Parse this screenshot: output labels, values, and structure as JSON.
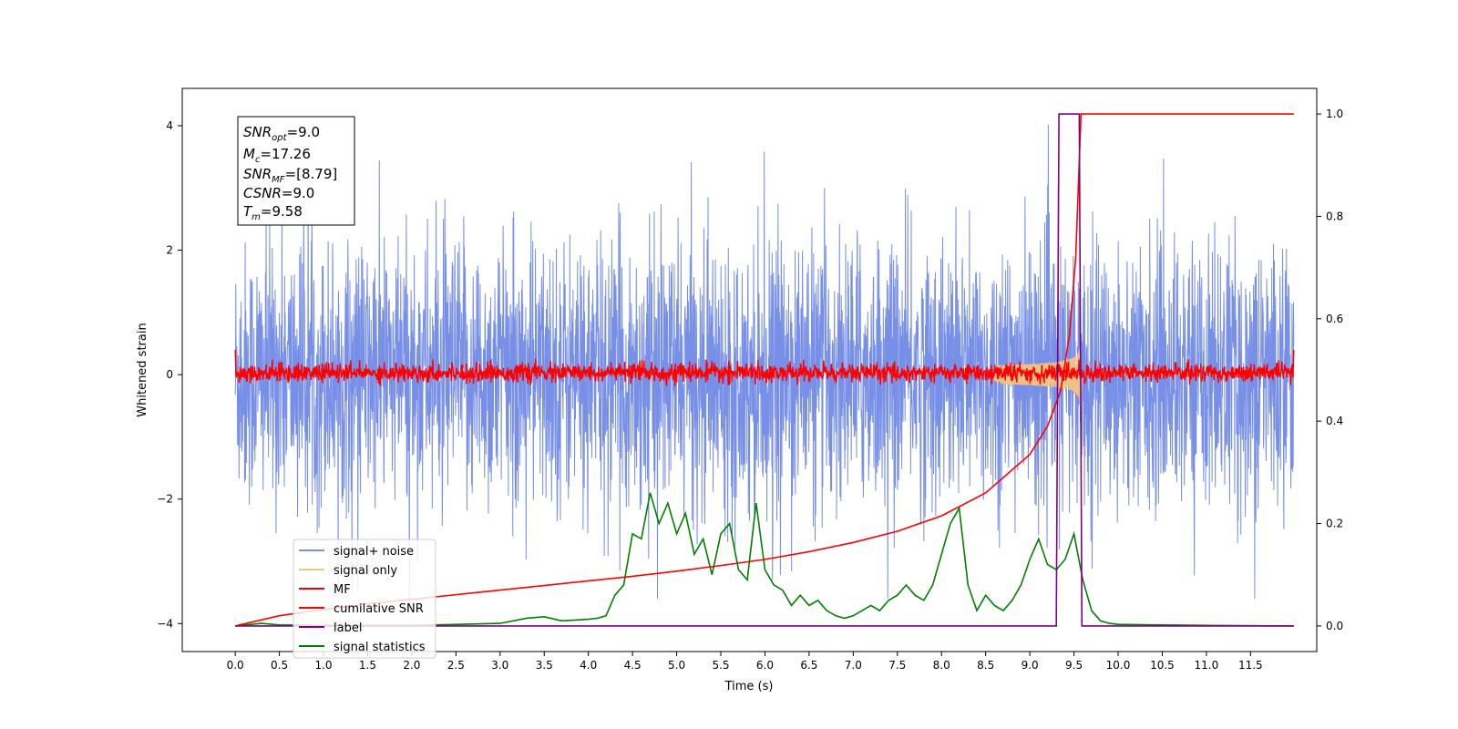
{
  "chart_data": {
    "type": "line",
    "xlabel": "Time (s)",
    "ylabel": "Whitened strain",
    "xlim": [
      -0.6,
      12.25
    ],
    "ylim": [
      -4.45,
      4.6
    ],
    "ylim_right": [
      -0.05,
      1.05
    ],
    "x_ticks": [
      "0.0",
      "0.5",
      "1.0",
      "1.5",
      "2.0",
      "2.5",
      "3.0",
      "3.5",
      "4.0",
      "4.5",
      "5.0",
      "5.5",
      "6.0",
      "6.5",
      "7.0",
      "7.5",
      "8.0",
      "8.5",
      "9.0",
      "9.5",
      "10.0",
      "10.5",
      "11.0",
      "11.5"
    ],
    "y_ticks_left": [
      "−4",
      "−2",
      "0",
      "2",
      "4"
    ],
    "y_ticks_right": [
      "0.0",
      "0.2",
      "0.4",
      "0.6",
      "0.8",
      "1.0"
    ],
    "annotation": {
      "snr_opt": "=9.0",
      "mc": "=17.26",
      "snr_mf": "=[8.79]",
      "csnr": "=9.0",
      "tm": "=9.58"
    },
    "series": [
      {
        "name": "signal+ noise",
        "color": "#778fe6",
        "axis": "left",
        "description_range": [
          -3.6,
          4.15
        ],
        "t_start": 0.0,
        "t_end": 11.99
      },
      {
        "name": "signal only",
        "color": "#f5c77e",
        "axis": "left",
        "chirp_peak_time": 9.58,
        "chirp_peak_amplitude": 1.0
      },
      {
        "name": "MF",
        "color": "#ff0000",
        "axis": "left",
        "band": [
          -0.15,
          0.2
        ]
      },
      {
        "name": "cumilative SNR",
        "color": "#ff0000",
        "axis": "right",
        "x": [
          0.0,
          0.5,
          1.0,
          1.5,
          2.0,
          2.5,
          3.0,
          3.5,
          4.0,
          4.5,
          5.0,
          5.5,
          6.0,
          6.5,
          7.0,
          7.5,
          8.0,
          8.5,
          9.0,
          9.2,
          9.35,
          9.45,
          9.52,
          9.58,
          10.0,
          11.0,
          11.99
        ],
        "values": [
          0.0,
          0.02,
          0.032,
          0.043,
          0.052,
          0.061,
          0.07,
          0.079,
          0.088,
          0.097,
          0.107,
          0.118,
          0.13,
          0.145,
          0.163,
          0.185,
          0.215,
          0.26,
          0.335,
          0.39,
          0.46,
          0.57,
          0.72,
          1.0,
          1.0,
          1.0,
          1.0
        ]
      },
      {
        "name": "label",
        "color": "#800080",
        "axis": "right",
        "x": [
          0.0,
          9.3,
          9.33,
          9.56,
          9.59,
          11.99
        ],
        "values": [
          0,
          0,
          1,
          1,
          0,
          0
        ]
      },
      {
        "name": "signal statistics",
        "color": "#008000",
        "axis": "right",
        "x": [
          0.0,
          0.3,
          0.5,
          1.0,
          2.0,
          3.0,
          3.3,
          3.5,
          3.7,
          4.0,
          4.1,
          4.2,
          4.3,
          4.4,
          4.5,
          4.6,
          4.7,
          4.8,
          4.9,
          5.0,
          5.1,
          5.2,
          5.3,
          5.4,
          5.5,
          5.6,
          5.7,
          5.8,
          5.9,
          6.0,
          6.1,
          6.2,
          6.3,
          6.4,
          6.5,
          6.6,
          6.7,
          6.8,
          6.9,
          7.0,
          7.1,
          7.2,
          7.3,
          7.4,
          7.5,
          7.6,
          7.7,
          7.8,
          7.9,
          8.0,
          8.1,
          8.2,
          8.3,
          8.4,
          8.5,
          8.6,
          8.7,
          8.8,
          8.9,
          9.0,
          9.1,
          9.2,
          9.3,
          9.4,
          9.5,
          9.6,
          9.7,
          9.8,
          9.9,
          10.0,
          10.5,
          11.0,
          11.99
        ],
        "values": [
          0.0,
          0.005,
          0.002,
          0.001,
          0.001,
          0.005,
          0.015,
          0.018,
          0.01,
          0.013,
          0.015,
          0.02,
          0.06,
          0.08,
          0.18,
          0.17,
          0.26,
          0.2,
          0.24,
          0.18,
          0.22,
          0.14,
          0.17,
          0.1,
          0.18,
          0.2,
          0.11,
          0.09,
          0.24,
          0.11,
          0.08,
          0.07,
          0.04,
          0.06,
          0.04,
          0.05,
          0.03,
          0.02,
          0.015,
          0.02,
          0.03,
          0.04,
          0.03,
          0.05,
          0.06,
          0.08,
          0.06,
          0.05,
          0.08,
          0.14,
          0.2,
          0.23,
          0.08,
          0.03,
          0.06,
          0.04,
          0.03,
          0.05,
          0.08,
          0.13,
          0.17,
          0.12,
          0.11,
          0.13,
          0.18,
          0.09,
          0.03,
          0.01,
          0.005,
          0.003,
          0.002,
          0.001,
          0.0
        ]
      }
    ],
    "legend_position": "lower-left"
  }
}
